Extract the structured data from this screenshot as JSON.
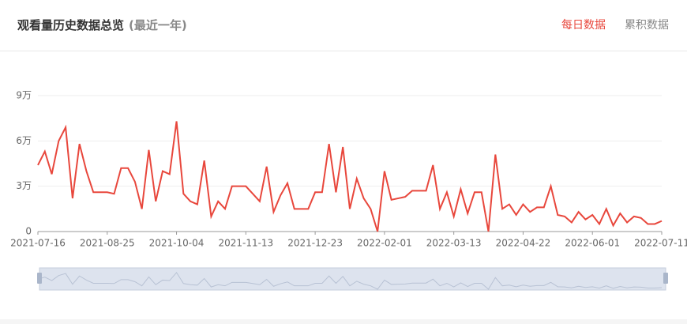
{
  "header": {
    "title": "观看量历史数据总览",
    "subtitle": "(最近一年)",
    "tabs": [
      "每日数据",
      "累积数据"
    ]
  },
  "chart_data": {
    "type": "line",
    "categories": [
      "2021-07-16",
      "2021-07-20",
      "2021-07-24",
      "2021-07-28",
      "2021-08-01",
      "2021-08-05",
      "2021-08-09",
      "2021-08-13",
      "2021-08-17",
      "2021-08-21",
      "2021-08-25",
      "2021-08-29",
      "2021-09-02",
      "2021-09-06",
      "2021-09-10",
      "2021-09-14",
      "2021-09-18",
      "2021-09-22",
      "2021-09-26",
      "2021-09-30",
      "2021-10-04",
      "2021-10-08",
      "2021-10-12",
      "2021-10-16",
      "2021-10-20",
      "2021-10-24",
      "2021-10-28",
      "2021-11-01",
      "2021-11-05",
      "2021-11-09",
      "2021-11-13",
      "2021-11-17",
      "2021-11-21",
      "2021-11-25",
      "2021-11-29",
      "2021-12-03",
      "2021-12-07",
      "2021-12-11",
      "2021-12-15",
      "2021-12-19",
      "2021-12-23",
      "2021-12-27",
      "2021-12-31",
      "2022-01-04",
      "2022-01-08",
      "2022-01-12",
      "2022-01-16",
      "2022-01-20",
      "2022-01-24",
      "2022-01-28",
      "2022-02-01",
      "2022-02-05",
      "2022-02-09",
      "2022-02-13",
      "2022-02-17",
      "2022-02-21",
      "2022-02-25",
      "2022-03-01",
      "2022-03-05",
      "2022-03-09",
      "2022-03-13",
      "2022-03-17",
      "2022-03-21",
      "2022-03-25",
      "2022-03-29",
      "2022-04-02",
      "2022-04-06",
      "2022-04-10",
      "2022-04-14",
      "2022-04-18",
      "2022-04-22",
      "2022-04-26",
      "2022-04-30",
      "2022-05-04",
      "2022-05-08",
      "2022-05-12",
      "2022-05-16",
      "2022-05-20",
      "2022-05-24",
      "2022-05-28",
      "2022-06-01",
      "2022-06-05",
      "2022-06-09",
      "2022-06-13",
      "2022-06-17",
      "2022-06-21",
      "2022-06-25",
      "2022-06-29",
      "2022-07-03",
      "2022-07-07",
      "2022-07-11"
    ],
    "xticks": [
      0,
      10,
      20,
      30,
      40,
      50,
      60,
      70,
      80,
      90
    ],
    "series": [
      {
        "name": "观看量",
        "color": "#e8473c",
        "values": [
          44000,
          53000,
          38000,
          60000,
          69000,
          22000,
          58000,
          40000,
          26000,
          26000,
          26000,
          25000,
          42000,
          42000,
          33000,
          15000,
          54000,
          20000,
          40000,
          38000,
          73000,
          25000,
          20000,
          18000,
          47000,
          10000,
          20000,
          15000,
          30000,
          30000,
          30000,
          25000,
          20000,
          43000,
          13000,
          24000,
          32000,
          15000,
          15000,
          15000,
          26000,
          26000,
          58000,
          26000,
          56000,
          15000,
          35000,
          22000,
          15000,
          0,
          40000,
          21000,
          22000,
          23000,
          27000,
          27000,
          27000,
          44000,
          15000,
          26000,
          10000,
          28000,
          12000,
          26000,
          26000,
          0,
          51000,
          15000,
          18000,
          11000,
          18000,
          13000,
          16000,
          16000,
          30000,
          11000,
          10000,
          6000,
          13000,
          8000,
          11000,
          5000,
          15000,
          4000,
          12000,
          6000,
          10000,
          9000,
          5000,
          5000,
          7000
        ]
      }
    ],
    "ylim": [
      0,
      90000
    ],
    "yticks": [
      0,
      {
        "value": 30000,
        "label": "3万"
      },
      {
        "value": 60000,
        "label": "6万"
      },
      {
        "value": 90000,
        "label": "9万"
      }
    ],
    "grid": true
  }
}
